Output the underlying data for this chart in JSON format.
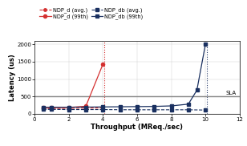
{
  "ndp_d_avg_x": [
    0.5,
    1,
    2,
    3,
    4
  ],
  "ndp_d_avg_y": [
    150,
    155,
    160,
    165,
    170
  ],
  "ndp_d_99th_x": [
    0.5,
    1,
    2,
    3,
    4
  ],
  "ndp_d_99th_y": [
    175,
    180,
    185,
    220,
    1430
  ],
  "ndp_d_vline_x": 4.1,
  "ndp_db_avg_x": [
    0.5,
    1,
    2,
    3,
    4,
    5,
    6,
    7,
    8,
    9,
    10
  ],
  "ndp_db_avg_y": [
    130,
    130,
    125,
    125,
    125,
    120,
    118,
    118,
    118,
    118,
    110
  ],
  "ndp_db_99th_x": [
    0.5,
    1,
    2,
    3,
    4,
    5,
    6,
    7,
    8,
    9,
    9.5,
    10
  ],
  "ndp_db_99th_y": [
    185,
    190,
    190,
    195,
    200,
    205,
    210,
    215,
    230,
    280,
    680,
    2000
  ],
  "ndp_db_vline_x": 10.1,
  "sla_y": 500,
  "sla_label": "SLA",
  "xlabel": "Throughput (MReq./sec)",
  "ylabel": "Latency (us)",
  "xlim": [
    0,
    12
  ],
  "ylim": [
    0,
    2100
  ],
  "yticks": [
    0,
    500,
    1000,
    1500,
    2000
  ],
  "xticks": [
    0,
    2,
    4,
    6,
    8,
    10,
    12
  ],
  "color_red": "#d43030",
  "color_blue": "#1a3060",
  "color_sla": "#888888",
  "legend_ndp_d_avg": "NDP_d (avg.)",
  "legend_ndp_d_99th": "NDP_d (99th)",
  "legend_ndp_db_avg": "NDP_db (avg.)",
  "legend_ndp_db_99th": "NDP_db (99th)"
}
